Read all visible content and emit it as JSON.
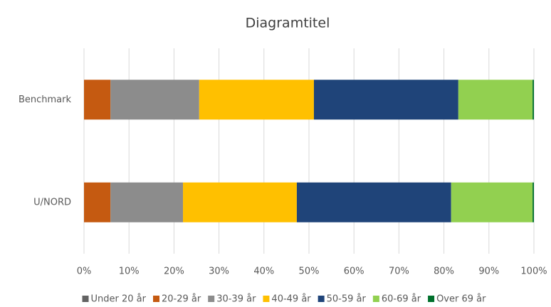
{
  "chart_data": {
    "type": "stacked_bar_horizontal",
    "title": "Diagramtitel",
    "categories": [
      "Benchmark",
      "U/NORD"
    ],
    "series": [
      {
        "name": "Under 20 år",
        "color": "#636363",
        "values": [
          0,
          0
        ]
      },
      {
        "name": "20-29 år",
        "color": "#c55a11",
        "values": [
          5.9,
          5.9
        ]
      },
      {
        "name": "30-39 år",
        "color": "#8c8c8c",
        "values": [
          19.7,
          16.1
        ]
      },
      {
        "name": "40-49 år",
        "color": "#ffc000",
        "values": [
          25.5,
          25.3
        ]
      },
      {
        "name": "50-59 år",
        "color": "#1f4479",
        "values": [
          32.1,
          34.3
        ]
      },
      {
        "name": "60-69 år",
        "color": "#92d050",
        "values": [
          16.5,
          18.1
        ]
      },
      {
        "name": "Over 69 år",
        "color": "#00702c",
        "values": [
          0.3,
          0.3
        ]
      }
    ],
    "xlim": [
      0,
      100
    ],
    "xticks": [
      {
        "value": 0,
        "label": "0%"
      },
      {
        "value": 10,
        "label": "10%"
      },
      {
        "value": 20,
        "label": "20%"
      },
      {
        "value": 30,
        "label": "30%"
      },
      {
        "value": 40,
        "label": "40%"
      },
      {
        "value": 50,
        "label": "50%"
      },
      {
        "value": 60,
        "label": "60%"
      },
      {
        "value": 70,
        "label": "70%"
      },
      {
        "value": 80,
        "label": "80%"
      },
      {
        "value": 90,
        "label": "90%"
      },
      {
        "value": 100,
        "label": "100%"
      }
    ],
    "grid": true,
    "legend": "bottom"
  }
}
